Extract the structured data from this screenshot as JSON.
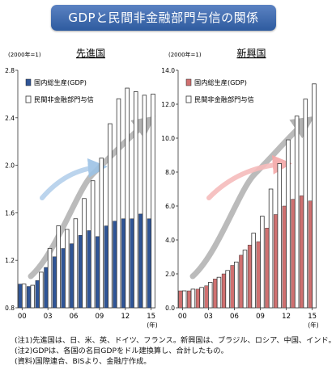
{
  "page_title": "GDPと民間非金融部門与信の関係",
  "notes": [
    "(注1)先進国は、日、米、英、ドイツ、フランス。新興国は、ブラジル、ロシア、中国、インド。",
    "(注2)GDPは、各国の名目GDPをドル建換算し、合計したもの。",
    "(資料)国際連合、BISより、金融庁作成。"
  ],
  "colors": {
    "gdp_developed": "#2f5597",
    "gdp_emerging": "#d07070",
    "credit_fill": "#ffffff",
    "credit_stroke": "#333333"
  },
  "chart_data": [
    {
      "type": "bar",
      "title": "先進国",
      "unit_label": "(2000年=1)",
      "xlabel": "(年)",
      "x_tick_labels": [
        "00",
        "03",
        "06",
        "09",
        "12",
        "15"
      ],
      "years": [
        2000,
        2001,
        2002,
        2003,
        2004,
        2005,
        2006,
        2007,
        2008,
        2009,
        2010,
        2011,
        2012,
        2013,
        2014,
        2015
      ],
      "ylim": [
        0.8,
        2.8
      ],
      "y_ticks": [
        "0.8",
        "1.2",
        "1.6",
        "2.0",
        "2.4",
        "2.8"
      ],
      "legend_position": "top-left",
      "series": [
        {
          "name": "国内総生産(GDP)",
          "style": "filled",
          "values": [
            1.0,
            0.98,
            1.03,
            1.14,
            1.23,
            1.3,
            1.34,
            1.41,
            1.45,
            1.4,
            1.49,
            1.53,
            1.55,
            1.55,
            1.59,
            1.55
          ]
        },
        {
          "name": "民間非金融部門与信",
          "style": "hollow",
          "values": [
            1.0,
            0.99,
            1.1,
            1.3,
            1.49,
            1.46,
            1.55,
            1.72,
            1.87,
            2.06,
            2.35,
            2.56,
            2.65,
            2.62,
            2.59,
            2.6
          ]
        }
      ]
    },
    {
      "type": "bar",
      "title": "新興国",
      "unit_label": "(2000年=1)",
      "xlabel": "(年)",
      "x_tick_labels": [
        "00",
        "03",
        "06",
        "09",
        "12",
        "15"
      ],
      "years": [
        2000,
        2001,
        2002,
        2003,
        2004,
        2005,
        2006,
        2007,
        2008,
        2009,
        2010,
        2011,
        2012,
        2013,
        2014,
        2015
      ],
      "ylim": [
        0,
        14
      ],
      "y_ticks": [
        "0.0",
        "2.0",
        "4.0",
        "6.0",
        "8.0",
        "10.0",
        "12.0",
        "14.0"
      ],
      "legend_position": "top-left",
      "series": [
        {
          "name": "国内総生産(GDP)",
          "style": "filled",
          "values": [
            1.0,
            1.0,
            1.1,
            1.3,
            1.7,
            2.0,
            2.5,
            3.1,
            3.7,
            3.9,
            4.7,
            5.5,
            6.0,
            6.4,
            6.6,
            6.3
          ]
        },
        {
          "name": "民間非金融部門与信",
          "style": "hollow",
          "values": [
            1.0,
            1.1,
            1.2,
            1.5,
            1.8,
            2.2,
            2.7,
            3.4,
            4.4,
            5.4,
            7.0,
            8.5,
            9.9,
            11.3,
            12.3,
            13.2
          ]
        }
      ]
    }
  ]
}
